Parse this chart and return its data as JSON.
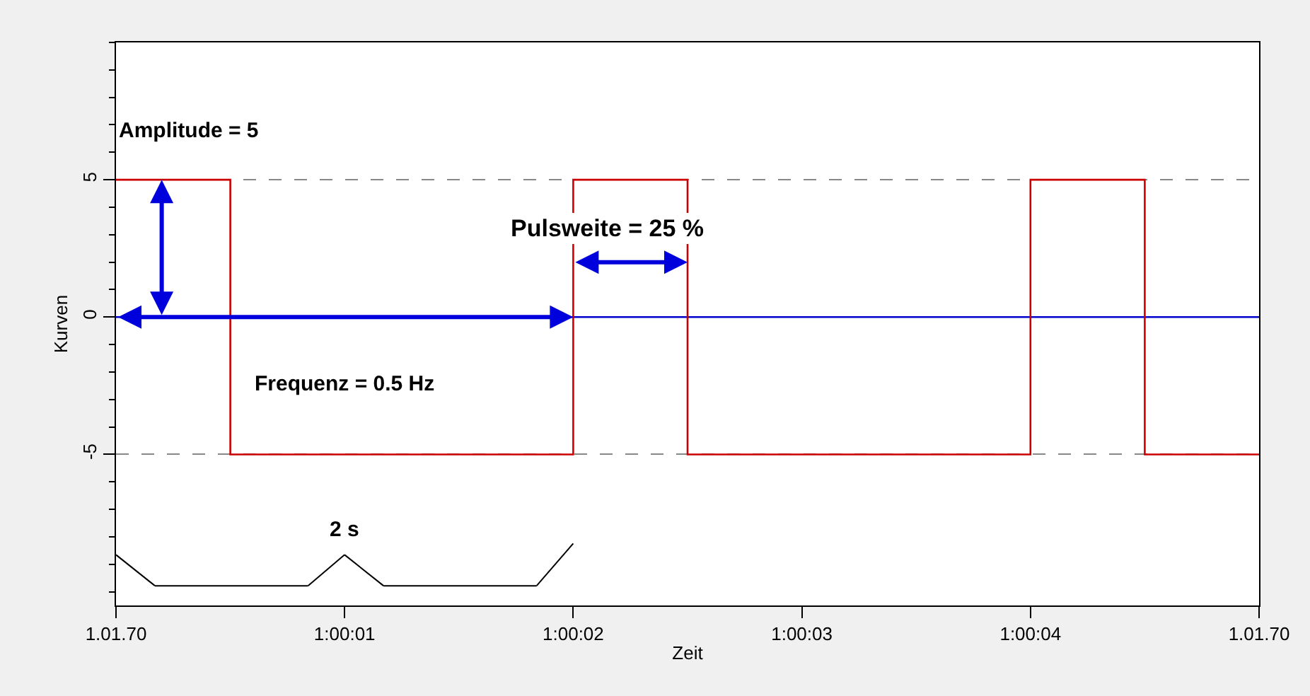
{
  "chart_data": {
    "type": "line",
    "xlabel": "Zeit",
    "ylabel": "Kurven",
    "xlim": [
      "1970-01-01T01:00:00",
      "1970-01-01T01:00:05"
    ],
    "ylim": [
      -10.5,
      10
    ],
    "xticks": [
      {
        "value": "1970-01-01T01:00:00",
        "label": "1.01.70"
      },
      {
        "value": "1970-01-01T01:00:01",
        "label": "1:00:01"
      },
      {
        "value": "1970-01-01T01:00:02",
        "label": "1:00:02"
      },
      {
        "value": "1970-01-01T01:00:03",
        "label": "1:00:03"
      },
      {
        "value": "1970-01-01T01:00:04",
        "label": "1:00:04"
      },
      {
        "value": "1970-01-01T01:00:05",
        "label": "1.01.70"
      }
    ],
    "yticks": [
      -5,
      0,
      5
    ],
    "grid": "y",
    "line_style": "solid",
    "marker": "none",
    "series": [
      {
        "color": "#0000cc",
        "x": [
          "1970-01-01T01:00:00",
          "1970-01-01T01:00:05"
        ],
        "values": [
          0,
          0
        ]
      },
      {
        "type": "step",
        "color": "#cc0000",
        "x": [
          "1970-01-01T01:00:00",
          "1970-01-01T01:00:00.5",
          "1970-01-01T01:00:02",
          "1970-01-01T01:00:02.5",
          "1970-01-01T01:00:04",
          "1970-01-01T01:00:04.5",
          "1970-01-01T01:00:05"
        ],
        "values": [
          5,
          -5,
          5,
          -5,
          5,
          -5,
          -5
        ]
      }
    ],
    "annotations": [
      "Amplitude = 5",
      "Pulsweite = 25 %",
      "Frequenz = 0.5 Hz",
      "2 s"
    ]
  }
}
